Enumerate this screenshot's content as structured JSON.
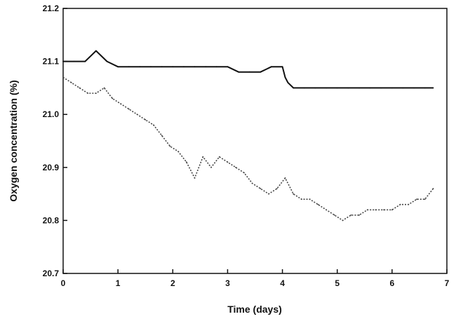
{
  "chart_data": {
    "type": "line",
    "title": "",
    "xlabel": "Time (days)",
    "ylabel": "Oxygen concentration (%)",
    "xlim": [
      0,
      7
    ],
    "ylim": [
      20.7,
      21.2
    ],
    "x_ticks": [
      "0",
      "1",
      "2",
      "3",
      "4",
      "5",
      "6",
      "7"
    ],
    "y_ticks": [
      "20.7",
      "20.8",
      "20.9",
      "21.0",
      "21.1",
      "21.2"
    ],
    "grid": false,
    "legend": "none",
    "series": [
      {
        "style": "solid",
        "color": "#111111",
        "x": [
          0.0,
          0.2,
          0.4,
          0.6,
          0.8,
          1.0,
          1.2,
          1.4,
          1.6,
          1.8,
          2.0,
          2.2,
          2.4,
          2.6,
          2.8,
          3.0,
          3.2,
          3.4,
          3.6,
          3.8,
          4.0,
          4.05,
          4.1,
          4.2,
          4.4,
          4.6,
          4.8,
          5.0,
          5.2,
          5.4,
          5.6,
          5.8,
          6.0,
          6.2,
          6.4,
          6.6,
          6.75
        ],
        "y": [
          21.1,
          21.1,
          21.1,
          21.12,
          21.1,
          21.09,
          21.09,
          21.09,
          21.09,
          21.09,
          21.09,
          21.09,
          21.09,
          21.09,
          21.09,
          21.09,
          21.08,
          21.08,
          21.08,
          21.09,
          21.09,
          21.07,
          21.06,
          21.05,
          21.05,
          21.05,
          21.05,
          21.05,
          21.05,
          21.05,
          21.05,
          21.05,
          21.05,
          21.05,
          21.05,
          21.05,
          21.05
        ]
      },
      {
        "style": "dotted",
        "color": "#444444",
        "x": [
          0.0,
          0.15,
          0.3,
          0.45,
          0.6,
          0.75,
          0.9,
          1.05,
          1.2,
          1.35,
          1.5,
          1.65,
          1.8,
          1.95,
          2.1,
          2.25,
          2.4,
          2.55,
          2.7,
          2.85,
          3.0,
          3.15,
          3.3,
          3.45,
          3.6,
          3.75,
          3.9,
          4.05,
          4.2,
          4.35,
          4.5,
          4.65,
          4.8,
          4.95,
          5.1,
          5.25,
          5.4,
          5.55,
          5.7,
          5.85,
          6.0,
          6.15,
          6.3,
          6.45,
          6.6,
          6.75
        ],
        "y": [
          21.07,
          21.06,
          21.05,
          21.04,
          21.04,
          21.05,
          21.03,
          21.02,
          21.01,
          21.0,
          20.99,
          20.98,
          20.96,
          20.94,
          20.93,
          20.91,
          20.88,
          20.92,
          20.9,
          20.92,
          20.91,
          20.9,
          20.89,
          20.87,
          20.86,
          20.85,
          20.86,
          20.88,
          20.85,
          20.84,
          20.84,
          20.83,
          20.82,
          20.81,
          20.8,
          20.81,
          20.81,
          20.82,
          20.82,
          20.82,
          20.82,
          20.83,
          20.83,
          20.84,
          20.84,
          20.86
        ]
      }
    ]
  }
}
